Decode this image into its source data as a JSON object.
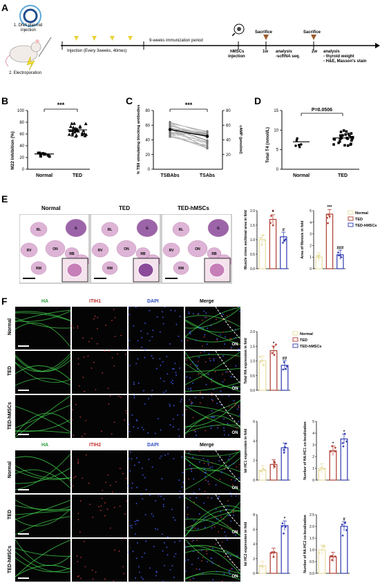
{
  "panel_labels": {
    "A": "A",
    "B": "B",
    "C": "C",
    "D": "D",
    "E": "E",
    "F": "F"
  },
  "timeline": {
    "step1": "1. DNA plasmid",
    "step1b": "injection",
    "step2": "2. Electroporation",
    "injection": "Injection (Every 3weeks, 4times)",
    "period": "9-weeks immunization period",
    "hmscs": "hMSCs",
    "hmscs2": "injection",
    "sac1": "Sacrifice",
    "sac2": "Sacrifice",
    "w1": "1w",
    "w2": "2w",
    "a1_title": "analysis",
    "a1_item": "-scRNA seq.",
    "a2_title": "analysis",
    "a2_item1": "- thyroid weight",
    "a2_item2": "- H&E, Masson's stain"
  },
  "panelE": {
    "cols": [
      "Normal",
      "TED",
      "TED-hMSCs"
    ],
    "muscles": [
      "RL",
      "G",
      "RV",
      "ON",
      "RB",
      "RD",
      "RM"
    ]
  },
  "panelF": {
    "headers1": [
      "HA",
      "ITIH1",
      "DAPI",
      "Merge"
    ],
    "headers2": [
      "HA",
      "ITIH2",
      "DAPI",
      "Merge"
    ],
    "rows": [
      "Normal",
      "TED",
      "TED-hMSCs"
    ],
    "on_label": "ON"
  },
  "colors": {
    "normal": "#e9dfa6",
    "ted": "#b5473c",
    "tedh": "#3d47b5",
    "he_pink": "#d9a7cf",
    "he_purple": "#8b4a9a"
  },
  "chart_data": [
    {
      "id": "B",
      "type": "scatter",
      "ylabel": "M22 Inhibition (%)",
      "categories": [
        "Normal",
        "TED"
      ],
      "means": [
        26,
        67
      ],
      "ylim": [
        0,
        100
      ],
      "yticks": [
        0,
        20,
        40,
        60,
        80,
        100
      ],
      "significance": "***"
    },
    {
      "id": "C",
      "type": "line",
      "ylabel": "% TBII stimulating blocking antibodies",
      "ylabel2": "cAMP (pmol/ml)",
      "categories": [
        "TSBAbs",
        "TSAbs"
      ],
      "ylim": [
        0,
        80
      ],
      "yticks": [
        0,
        20,
        40,
        60,
        80
      ],
      "y2ticks": [
        20,
        40,
        60,
        80
      ],
      "means": [
        54,
        45
      ],
      "significance": "***"
    },
    {
      "id": "D",
      "type": "scatter",
      "ylabel": "Total T4 (nmol/L)",
      "categories": [
        "Normal",
        "TED"
      ],
      "means": [
        7.0,
        8.0
      ],
      "ylim": [
        0,
        15
      ],
      "yticks": [
        0,
        5,
        10,
        15
      ],
      "significance": "P=0.0506"
    },
    {
      "id": "E1",
      "type": "bar",
      "ylabel": "Muscle cross sectional area in fold",
      "categories": [
        "Normal",
        "TED",
        "TED-hMSCs"
      ],
      "values": [
        1.0,
        1.7,
        1.1
      ],
      "ylim": [
        0,
        2.0
      ],
      "yticks": [
        "0.0",
        "0.5",
        "1.0",
        "1.5",
        "2.0"
      ],
      "marks": [
        "",
        "*",
        "#"
      ]
    },
    {
      "id": "E2",
      "type": "bar",
      "ylabel": "Area of fibrosis in fold",
      "categories": [
        "Normal",
        "TED",
        "TED-hMSCs"
      ],
      "values": [
        1.0,
        4.7,
        1.2
      ],
      "ylim": [
        0,
        5
      ],
      "yticks": [
        "0",
        "1",
        "2",
        "3",
        "4",
        "5"
      ],
      "marks": [
        "",
        "***",
        "###"
      ],
      "legend": [
        "Normal",
        "TED",
        "TED-hMSCs"
      ]
    },
    {
      "id": "F1",
      "type": "bar",
      "ylabel": "Total HA expression in fold",
      "categories": [
        "Normal",
        "TED",
        "TED-hMSCs"
      ],
      "values": [
        1.0,
        1.35,
        0.85
      ],
      "ylim": [
        0,
        2.0
      ],
      "yticks": [
        "0.0",
        "0.5",
        "1.0",
        "1.5",
        "2.0"
      ],
      "marks": [
        "",
        "*",
        "##"
      ],
      "legend": [
        "Normal",
        "TED",
        "TED-hMSCs"
      ]
    },
    {
      "id": "F2",
      "type": "bar",
      "ylabel": "IαI HC1 expression in fold",
      "categories": [
        "Normal",
        "TED",
        "TED-hMSCs"
      ],
      "values": [
        1.0,
        1.6,
        3.3
      ],
      "ylim": [
        0,
        6
      ],
      "yticks": [
        "0",
        "2",
        "4",
        "6"
      ],
      "marks": [
        "",
        "",
        ""
      ]
    },
    {
      "id": "F3",
      "type": "bar",
      "ylabel": "Number of HA-HC1 co-localization",
      "categories": [
        "Normal",
        "TED",
        "TED-hMSCs"
      ],
      "values": [
        1.0,
        2.5,
        3.5
      ],
      "ylim": [
        0,
        5
      ],
      "yticks": [
        "0",
        "1",
        "2",
        "3",
        "4",
        "5"
      ],
      "marks": [
        "",
        "*",
        "*"
      ]
    },
    {
      "id": "F4",
      "type": "bar",
      "ylabel": "IαI HC2 expression in fold",
      "categories": [
        "Normal",
        "TED",
        "TED-hMSCs"
      ],
      "values": [
        1.0,
        2.8,
        6.5
      ],
      "ylim": [
        0,
        8
      ],
      "yticks": [
        "0",
        "2",
        "4",
        "6",
        "8"
      ],
      "marks": [
        "",
        "",
        "*"
      ]
    },
    {
      "id": "F5",
      "type": "bar",
      "ylabel": "Number of HA-HC2 co-localization",
      "categories": [
        "Normal",
        "TED",
        "TED-hMSCs"
      ],
      "values": [
        1.0,
        0.7,
        2.0
      ],
      "ylim": [
        0,
        2.5
      ],
      "yticks": [
        "0.0",
        "0.5",
        "1.0",
        "1.5",
        "2.0",
        "2.5"
      ],
      "marks": [
        "",
        "",
        "#"
      ]
    }
  ]
}
